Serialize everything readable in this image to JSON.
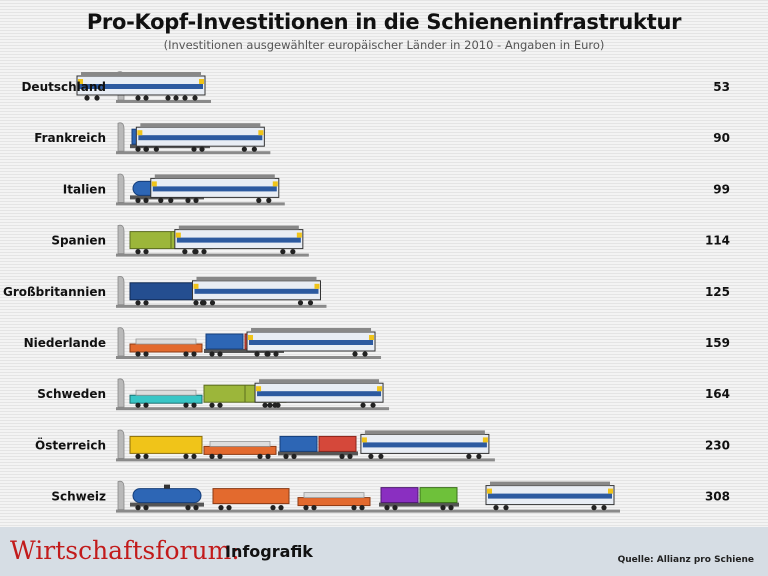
{
  "title": "Pro-Kopf-Investitionen in die Schieneninfrastruktur",
  "subtitle": "(Investitionen ausgewählter europäischer Länder in 2010 - Angaben in Euro)",
  "colors": {
    "rail": "#8a8a8a",
    "loco_body": "#e8edf4",
    "loco_stripe": "#2c5aa0",
    "wagon_red": "#d5483a",
    "wagon_teal": "#39c6c6",
    "wagon_blue": "#2d66b5",
    "wagon_olive": "#9cb63a",
    "wagon_navy": "#244e90",
    "wagon_yellow": "#f0c419",
    "wagon_purple": "#8a2fc1",
    "wagon_green": "#6ec13a",
    "flat_orange": "#e36a2e",
    "footer_bg": "#d6dde4",
    "brand_red": "#c21b1b"
  },
  "chart_data": {
    "type": "bar",
    "categories": [
      "Deutschland",
      "Frankreich",
      "Italien",
      "Spanien",
      "Großbritannien",
      "Niederlande",
      "Schweden",
      "Österreich",
      "Schweiz"
    ],
    "values": [
      53,
      90,
      99,
      114,
      125,
      159,
      164,
      230,
      308
    ],
    "value_labels": [
      "53",
      "90",
      "99",
      "114",
      "125",
      "159",
      "164",
      "230",
      "308"
    ],
    "xlim": [
      0,
      308
    ],
    "grid": false,
    "orientation": "horizontal",
    "bar_style": "trains",
    "wagons": [
      [
        "teal"
      ],
      [
        "blue-red-container"
      ],
      [
        "blue-tank"
      ],
      [
        "olive-box"
      ],
      [
        "navy-box"
      ],
      [
        "orange-flat",
        "blue-red-container"
      ],
      [
        "teal-flat",
        "olive-box"
      ],
      [
        "yellow-open",
        "orange-flat",
        "blue-red-container"
      ],
      [
        "blue-tank",
        "orange-hopper",
        "orange-flat",
        "purple-green-container"
      ]
    ]
  },
  "footer": {
    "brand_red": "Wirtschaftsforum:",
    "brand_black": "Infografik",
    "source": "Quelle: Allianz pro Schiene"
  }
}
